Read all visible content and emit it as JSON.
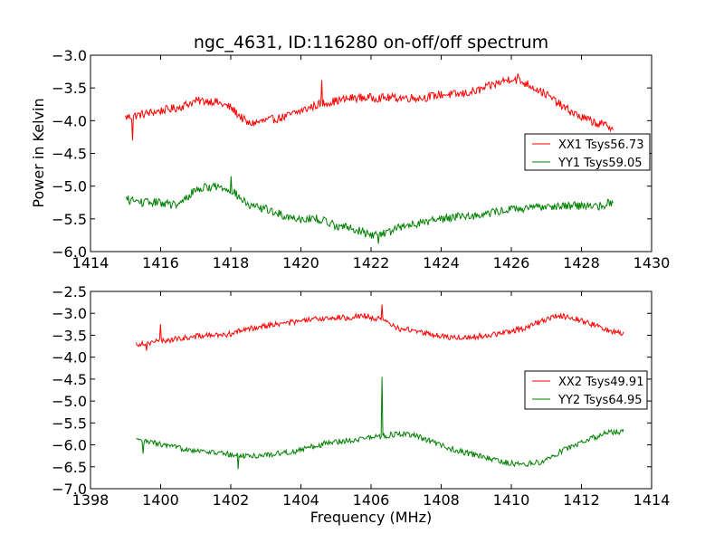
{
  "figure": {
    "title": "ngc_4631, ID:116280 on-off/off spectrum",
    "ylabel": "Power in Kelvin",
    "xlabel": "Frequency (MHz)"
  },
  "chart_data": [
    {
      "type": "line",
      "title": "ngc_4631, ID:116280 on-off/off spectrum",
      "ylabel": "Power in Kelvin",
      "xlabel": "",
      "xlim": [
        1414,
        1430
      ],
      "ylim": [
        -6.0,
        -3.0
      ],
      "xticks": [
        1414,
        1416,
        1418,
        1420,
        1422,
        1424,
        1426,
        1428,
        1430
      ],
      "yticks": [
        -3.0,
        -3.5,
        -4.0,
        -4.5,
        -5.0,
        -5.5,
        -6.0
      ],
      "xtick_labels": [
        "1414",
        "1416",
        "1418",
        "1420",
        "1422",
        "1424",
        "1426",
        "1428",
        "1430"
      ],
      "ytick_labels": [
        "−3.0",
        "−3.5",
        "−4.0",
        "−4.5",
        "−5.0",
        "−5.5",
        "−6.0"
      ],
      "grid": false,
      "legend_position": "right",
      "series": [
        {
          "name": "XX1 Tsys56.73",
          "color": "#ff0000",
          "x": [
            1415.0,
            1415.5,
            1416.0,
            1416.5,
            1417.0,
            1417.5,
            1418.0,
            1418.5,
            1419.0,
            1419.5,
            1420.0,
            1420.5,
            1421.0,
            1421.5,
            1422.0,
            1422.5,
            1423.0,
            1423.5,
            1424.0,
            1424.5,
            1425.0,
            1425.5,
            1426.0,
            1426.5,
            1427.0,
            1427.5,
            1428.0,
            1428.5,
            1428.9
          ],
          "y": [
            -3.95,
            -3.9,
            -3.85,
            -3.8,
            -3.7,
            -3.7,
            -3.8,
            -4.05,
            -4.0,
            -3.95,
            -3.85,
            -3.75,
            -3.7,
            -3.65,
            -3.65,
            -3.65,
            -3.65,
            -3.65,
            -3.6,
            -3.6,
            -3.55,
            -3.45,
            -3.35,
            -3.45,
            -3.6,
            -3.8,
            -3.95,
            -4.05,
            -4.1
          ],
          "spikes": [
            {
              "x": 1415.2,
              "y": -4.3
            },
            {
              "x": 1420.6,
              "y": -3.38
            },
            {
              "x": 1426.2,
              "y": -3.28
            }
          ]
        },
        {
          "name": "YY1 Tsys59.05",
          "color": "#008000",
          "x": [
            1415.0,
            1415.5,
            1416.0,
            1416.5,
            1417.0,
            1417.5,
            1418.0,
            1418.5,
            1419.0,
            1419.5,
            1420.0,
            1420.5,
            1421.0,
            1421.5,
            1422.0,
            1422.5,
            1423.0,
            1423.5,
            1424.0,
            1424.5,
            1425.0,
            1425.5,
            1426.0,
            1426.5,
            1427.0,
            1427.5,
            1428.0,
            1428.5,
            1428.9
          ],
          "y": [
            -5.2,
            -5.25,
            -5.25,
            -5.3,
            -5.05,
            -5.0,
            -5.05,
            -5.3,
            -5.35,
            -5.45,
            -5.5,
            -5.5,
            -5.6,
            -5.65,
            -5.75,
            -5.7,
            -5.6,
            -5.55,
            -5.5,
            -5.45,
            -5.45,
            -5.4,
            -5.35,
            -5.35,
            -5.3,
            -5.3,
            -5.3,
            -5.3,
            -5.25
          ],
          "spikes": [
            {
              "x": 1418.0,
              "y": -4.85
            },
            {
              "x": 1422.2,
              "y": -5.88
            }
          ]
        }
      ]
    },
    {
      "type": "line",
      "title": "",
      "ylabel": "",
      "xlabel": "Frequency (MHz)",
      "xlim": [
        1398,
        1414
      ],
      "ylim": [
        -7.0,
        -2.5
      ],
      "xticks": [
        1398,
        1400,
        1402,
        1404,
        1406,
        1408,
        1410,
        1412,
        1414
      ],
      "yticks": [
        -2.5,
        -3.0,
        -3.5,
        -4.0,
        -4.5,
        -5.0,
        -5.5,
        -6.0,
        -6.5,
        -7.0
      ],
      "xtick_labels": [
        "1398",
        "1400",
        "1402",
        "1404",
        "1406",
        "1408",
        "1410",
        "1412",
        "1414"
      ],
      "ytick_labels": [
        "−2.5",
        "−3.0",
        "−3.5",
        "−4.0",
        "−4.5",
        "−5.0",
        "−5.5",
        "−6.0",
        "−6.5",
        "−7.0"
      ],
      "grid": false,
      "legend_position": "right",
      "series": [
        {
          "name": "XX2 Tsys49.91",
          "color": "#ff0000",
          "x": [
            1399.3,
            1399.8,
            1400.3,
            1400.8,
            1401.3,
            1401.8,
            1402.3,
            1402.8,
            1403.3,
            1403.8,
            1404.3,
            1404.8,
            1405.3,
            1405.8,
            1406.3,
            1406.8,
            1407.3,
            1407.8,
            1408.3,
            1408.8,
            1409.3,
            1409.8,
            1410.3,
            1410.8,
            1411.3,
            1411.8,
            1412.3,
            1412.8,
            1413.2
          ],
          "y": [
            -3.7,
            -3.65,
            -3.6,
            -3.55,
            -3.5,
            -3.5,
            -3.4,
            -3.3,
            -3.25,
            -3.2,
            -3.15,
            -3.1,
            -3.1,
            -3.05,
            -3.15,
            -3.35,
            -3.4,
            -3.5,
            -3.55,
            -3.55,
            -3.5,
            -3.45,
            -3.35,
            -3.2,
            -3.05,
            -3.1,
            -3.25,
            -3.4,
            -3.45
          ],
          "spikes": [
            {
              "x": 1399.6,
              "y": -3.85
            },
            {
              "x": 1400.0,
              "y": -3.25
            },
            {
              "x": 1406.3,
              "y": -2.8
            }
          ]
        },
        {
          "name": "YY2 Tsys64.95",
          "color": "#008000",
          "x": [
            1399.3,
            1399.8,
            1400.3,
            1400.8,
            1401.3,
            1401.8,
            1402.3,
            1402.8,
            1403.3,
            1403.8,
            1404.3,
            1404.8,
            1405.3,
            1405.8,
            1406.3,
            1406.8,
            1407.3,
            1407.8,
            1408.3,
            1408.8,
            1409.3,
            1409.8,
            1410.3,
            1410.8,
            1411.3,
            1411.8,
            1412.3,
            1412.8,
            1413.2
          ],
          "y": [
            -5.9,
            -5.95,
            -6.05,
            -6.1,
            -6.15,
            -6.2,
            -6.25,
            -6.25,
            -6.2,
            -6.15,
            -6.05,
            -5.95,
            -5.9,
            -5.85,
            -5.8,
            -5.75,
            -5.8,
            -5.95,
            -6.1,
            -6.2,
            -6.3,
            -6.4,
            -6.45,
            -6.4,
            -6.2,
            -6.0,
            -5.85,
            -5.7,
            -5.7
          ],
          "spikes": [
            {
              "x": 1406.3,
              "y": -4.45
            },
            {
              "x": 1402.2,
              "y": -6.55
            },
            {
              "x": 1399.5,
              "y": -6.2
            }
          ]
        }
      ]
    }
  ]
}
